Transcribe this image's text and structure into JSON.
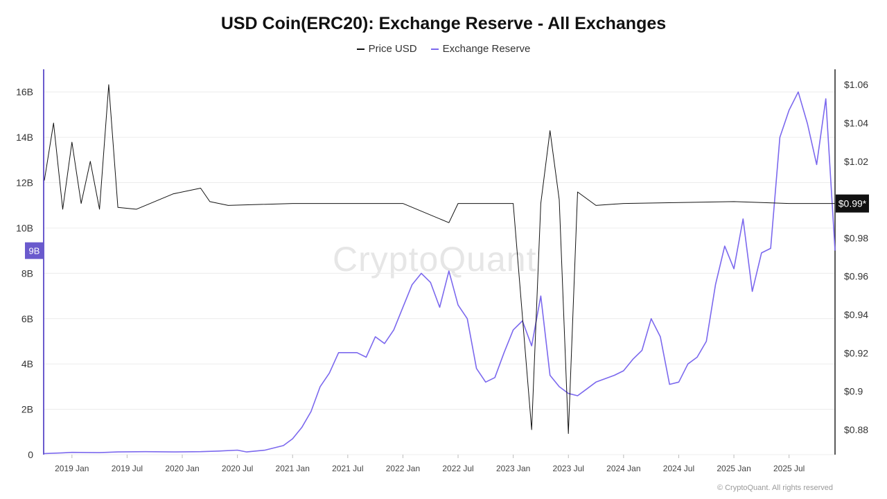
{
  "chart_data": {
    "type": "line",
    "title": "USD Coin(ERC20): Exchange Reserve - All Exchanges",
    "legend": [
      "Price USD",
      "Exchange Reserve"
    ],
    "legend_position": "top-center",
    "watermark": "CryptoQuant",
    "footer": "© CryptoQuant. All rights reserved",
    "x_range": [
      "2018-10",
      "2025-12"
    ],
    "x_ticks": [
      "2019 Jan",
      "2019 Jul",
      "2020 Jan",
      "2020 Jul",
      "2021 Jan",
      "2021 Jul",
      "2022 Jan",
      "2022 Jul",
      "2023 Jan",
      "2023 Jul",
      "2024 Jan",
      "2024 Jul",
      "2025 Jan",
      "2025 Jul"
    ],
    "y_left": {
      "ticks": [
        "0",
        "2B",
        "4B",
        "6B",
        "8B",
        "10B",
        "12B",
        "14B",
        "16B"
      ],
      "ylim": [
        0,
        17
      ]
    },
    "y_right": {
      "ticks": [
        "$0.88",
        "$0.9",
        "$0.92",
        "$0.94",
        "$0.96",
        "$0.98",
        "$1.02",
        "$1.04",
        "$1.06"
      ],
      "ylim": [
        0.867,
        1.068
      ]
    },
    "current_labels": {
      "reserve": "9B",
      "price": "$0.99*"
    },
    "grid": "horizontal",
    "colors": {
      "reserve": "#7b68ee",
      "price": "#111111",
      "left_axis": "#6a5acd"
    },
    "series": [
      {
        "name": "Exchange Reserve",
        "axis": "left",
        "unit": "billions",
        "points": [
          [
            "2018-10",
            0.05
          ],
          [
            "2018-12",
            0.08
          ],
          [
            "2019-01",
            0.1
          ],
          [
            "2019-04",
            0.09
          ],
          [
            "2019-06",
            0.12
          ],
          [
            "2019-09",
            0.13
          ],
          [
            "2019-12",
            0.12
          ],
          [
            "2020-03",
            0.13
          ],
          [
            "2020-05",
            0.16
          ],
          [
            "2020-07",
            0.2
          ],
          [
            "2020-08",
            0.12
          ],
          [
            "2020-10",
            0.2
          ],
          [
            "2020-12",
            0.4
          ],
          [
            "2021-01",
            0.7
          ],
          [
            "2021-02",
            1.2
          ],
          [
            "2021-03",
            1.9
          ],
          [
            "2021-04",
            3.0
          ],
          [
            "2021-05",
            3.6
          ],
          [
            "2021-06",
            4.5
          ],
          [
            "2021-08",
            4.5
          ],
          [
            "2021-09",
            4.3
          ],
          [
            "2021-10",
            5.2
          ],
          [
            "2021-11",
            4.9
          ],
          [
            "2021-12",
            5.5
          ],
          [
            "2022-01",
            6.5
          ],
          [
            "2022-02",
            7.5
          ],
          [
            "2022-03",
            8.0
          ],
          [
            "2022-04",
            7.6
          ],
          [
            "2022-05",
            6.5
          ],
          [
            "2022-06",
            8.1
          ],
          [
            "2022-07",
            6.6
          ],
          [
            "2022-08",
            6.0
          ],
          [
            "2022-09",
            3.8
          ],
          [
            "2022-10",
            3.2
          ],
          [
            "2022-11",
            3.4
          ],
          [
            "2022-12",
            4.5
          ],
          [
            "2023-01",
            5.5
          ],
          [
            "2023-02",
            5.9
          ],
          [
            "2023-03",
            4.8
          ],
          [
            "2023-04",
            7.0
          ],
          [
            "2023-05",
            3.5
          ],
          [
            "2023-06",
            3.0
          ],
          [
            "2023-07",
            2.7
          ],
          [
            "2023-08",
            2.6
          ],
          [
            "2023-09",
            2.9
          ],
          [
            "2023-10",
            3.2
          ],
          [
            "2023-12",
            3.5
          ],
          [
            "2024-01",
            3.7
          ],
          [
            "2024-02",
            4.2
          ],
          [
            "2024-03",
            4.6
          ],
          [
            "2024-04",
            6.0
          ],
          [
            "2024-05",
            5.2
          ],
          [
            "2024-06",
            3.1
          ],
          [
            "2024-07",
            3.2
          ],
          [
            "2024-08",
            4.0
          ],
          [
            "2024-09",
            4.3
          ],
          [
            "2024-10",
            5.0
          ],
          [
            "2024-11",
            7.5
          ],
          [
            "2024-12",
            9.2
          ],
          [
            "2025-01",
            8.2
          ],
          [
            "2025-02",
            10.4
          ],
          [
            "2025-03",
            7.2
          ],
          [
            "2025-04",
            8.9
          ],
          [
            "2025-05",
            9.1
          ],
          [
            "2025-06",
            14.0
          ],
          [
            "2025-07",
            15.2
          ],
          [
            "2025-08",
            16.0
          ],
          [
            "2025-09",
            14.6
          ],
          [
            "2025-10",
            12.8
          ],
          [
            "2025-11",
            15.7
          ],
          [
            "2025-12",
            9.0
          ]
        ]
      },
      {
        "name": "Price USD",
        "axis": "right",
        "unit": "USD",
        "points": [
          [
            "2018-10",
            1.01
          ],
          [
            "2018-11",
            1.04
          ],
          [
            "2018-12",
            0.995
          ],
          [
            "2019-01",
            1.03
          ],
          [
            "2019-02",
            0.998
          ],
          [
            "2019-03",
            1.02
          ],
          [
            "2019-04",
            0.995
          ],
          [
            "2019-05",
            1.06
          ],
          [
            "2019-06",
            0.996
          ],
          [
            "2019-08",
            0.995
          ],
          [
            "2019-12",
            1.003
          ],
          [
            "2020-03",
            1.006
          ],
          [
            "2020-04",
            0.999
          ],
          [
            "2020-06",
            0.997
          ],
          [
            "2021-01",
            0.998
          ],
          [
            "2022-01",
            0.998
          ],
          [
            "2022-06",
            0.988
          ],
          [
            "2022-07",
            0.998
          ],
          [
            "2023-01",
            0.998
          ],
          [
            "2023-03",
            0.88
          ],
          [
            "2023-04",
            0.998
          ],
          [
            "2023-05",
            1.036
          ],
          [
            "2023-06",
            1.0
          ],
          [
            "2023-07",
            0.878
          ],
          [
            "2023-08",
            1.004
          ],
          [
            "2023-10",
            0.997
          ],
          [
            "2024-01",
            0.998
          ],
          [
            "2025-01",
            0.999
          ],
          [
            "2025-07",
            0.998
          ],
          [
            "2025-12",
            0.998
          ]
        ]
      }
    ]
  }
}
